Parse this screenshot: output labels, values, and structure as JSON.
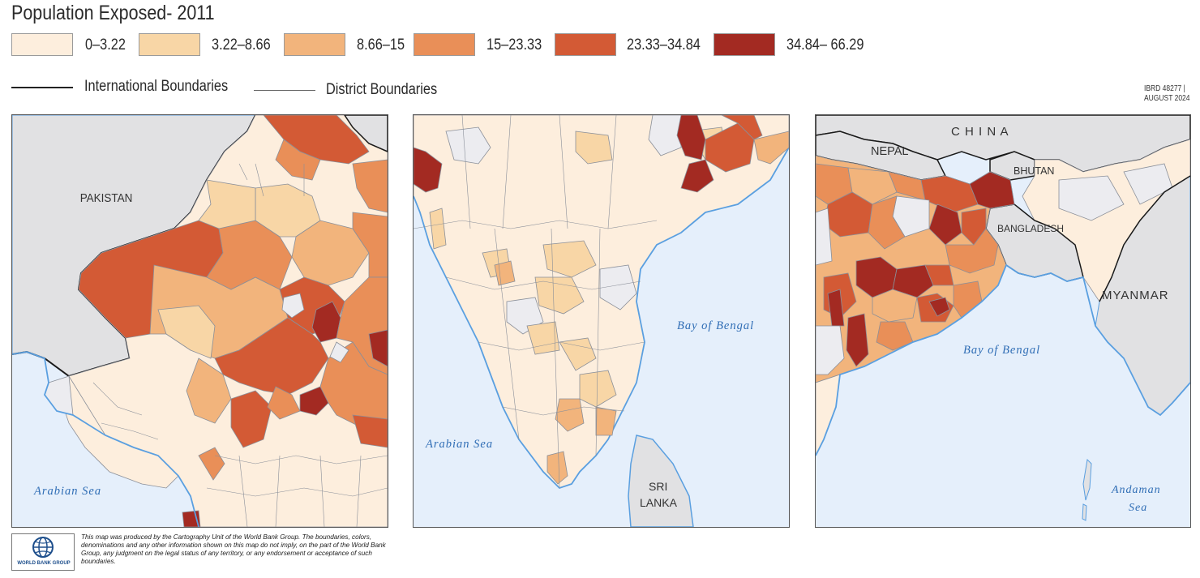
{
  "title": "Population Exposed- 2011",
  "legend": [
    {
      "label": "0–3.22",
      "color": "#fdeedd"
    },
    {
      "label": "3.22–8.66",
      "color": "#f8d6a6"
    },
    {
      "label": "8.66–15",
      "color": "#f2b47c"
    },
    {
      "label": "15–23.33",
      "color": "#e98f58"
    },
    {
      "label": "23.33–34.84",
      "color": "#d35a35"
    },
    {
      "label": "34.84– 66.29",
      "color": "#a32a22"
    }
  ],
  "boundaries": {
    "international": "International Boundaries",
    "district": "District Boundaries"
  },
  "map_id": {
    "line1": "IBRD 48277 |",
    "line2": "AUGUST 2024"
  },
  "colors": {
    "sea": "#e5effb",
    "coast": "#5a9fe0",
    "neighbor": "#e1e1e3",
    "no_data": "#ececf0",
    "district_line": "#8a8f99",
    "sea_label": "#2f6db5"
  },
  "panels": {
    "west": {
      "pakistan": "PAKISTAN",
      "sea": "Arabian Sea"
    },
    "south": {
      "arabian_sea": "Arabian Sea",
      "bay": "Bay of Bengal",
      "sri1": "SRI",
      "sri2": "LANKA"
    },
    "east": {
      "china": "C H I N A",
      "nepal": "NEPAL",
      "bhutan": "BHUTAN",
      "bangladesh": "BANGLADESH",
      "myanmar": "MYANMAR",
      "bay": "Bay of Bengal",
      "andaman1": "Andaman",
      "andaman2": "Sea"
    }
  },
  "footer": {
    "logo": "WORLD BANK GROUP",
    "disclaimer": "This map was produced by the Cartography Unit of the World Bank Group. The boundaries, colors, denominations and any other information shown on this map do not imply, on the part of the World Bank Group, any judgment on the legal status of any territory, or any endorsement or acceptance of such boundaries."
  }
}
